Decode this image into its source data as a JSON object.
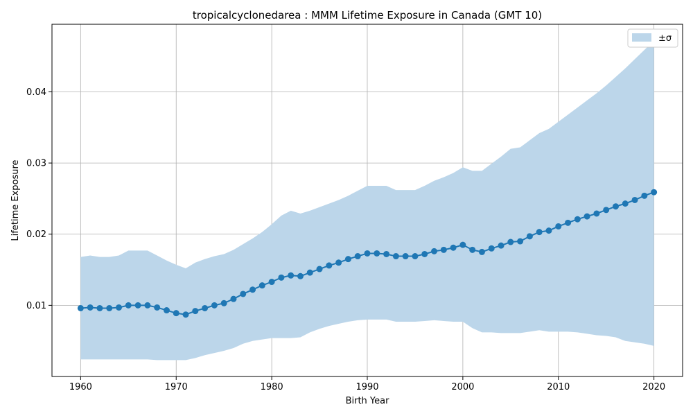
{
  "chart_data": {
    "type": "line",
    "title": "tropicalcyclonedarea : MMM Lifetime Exposure in Canada (GMT 10)",
    "xlabel": "Birth Year",
    "ylabel": "Lifetime Exposure",
    "xlim": [
      1957,
      2023
    ],
    "ylim": [
      0.0,
      0.0495
    ],
    "xticks": [
      1960,
      1970,
      1980,
      1990,
      2000,
      2010,
      2020
    ],
    "xtick_labels": [
      "1960",
      "1970",
      "1980",
      "1990",
      "2000",
      "2010",
      "2020"
    ],
    "yticks": [
      0.01,
      0.02,
      0.03,
      0.04
    ],
    "ytick_labels": [
      "0.01",
      "0.02",
      "0.03",
      "0.04"
    ],
    "grid": true,
    "legend": {
      "position": "top-right",
      "entries": [
        "±σ"
      ]
    },
    "line_color": "#1f77b4",
    "band_color": "#bcd6ea",
    "x": [
      1960,
      1961,
      1962,
      1963,
      1964,
      1965,
      1966,
      1967,
      1968,
      1969,
      1970,
      1971,
      1972,
      1973,
      1974,
      1975,
      1976,
      1977,
      1978,
      1979,
      1980,
      1981,
      1982,
      1983,
      1984,
      1985,
      1986,
      1987,
      1988,
      1989,
      1990,
      1991,
      1992,
      1993,
      1994,
      1995,
      1996,
      1997,
      1998,
      1999,
      2000,
      2001,
      2002,
      2003,
      2004,
      2005,
      2006,
      2007,
      2008,
      2009,
      2010,
      2011,
      2012,
      2013,
      2014,
      2015,
      2016,
      2017,
      2018,
      2019,
      2020
    ],
    "series": [
      {
        "name": "mean",
        "values": [
          0.0096,
          0.0097,
          0.0096,
          0.0096,
          0.0097,
          0.01,
          0.01,
          0.01,
          0.0097,
          0.0093,
          0.0089,
          0.0087,
          0.0092,
          0.0096,
          0.01,
          0.0103,
          0.0109,
          0.0116,
          0.0122,
          0.0128,
          0.0133,
          0.0139,
          0.0142,
          0.0141,
          0.0146,
          0.0151,
          0.0156,
          0.016,
          0.0165,
          0.0169,
          0.0173,
          0.0173,
          0.0172,
          0.0169,
          0.0169,
          0.0169,
          0.0172,
          0.0176,
          0.0178,
          0.0181,
          0.0185,
          0.0178,
          0.0175,
          0.018,
          0.0184,
          0.0189,
          0.019,
          0.0197,
          0.0203,
          0.0205,
          0.0211,
          0.0216,
          0.0221,
          0.0225,
          0.0229,
          0.0234,
          0.0239,
          0.0243,
          0.0248,
          0.0254,
          0.0259
        ]
      }
    ],
    "band": {
      "name": "±σ",
      "upper": [
        0.0168,
        0.017,
        0.0168,
        0.0168,
        0.017,
        0.0177,
        0.0177,
        0.0177,
        0.017,
        0.0163,
        0.0157,
        0.0152,
        0.016,
        0.0165,
        0.0169,
        0.0172,
        0.0178,
        0.0186,
        0.0194,
        0.0203,
        0.0214,
        0.0226,
        0.0233,
        0.0229,
        0.0233,
        0.0238,
        0.0243,
        0.0248,
        0.0254,
        0.0261,
        0.0268,
        0.0268,
        0.0268,
        0.0262,
        0.0262,
        0.0262,
        0.0268,
        0.0275,
        0.028,
        0.0286,
        0.0294,
        0.0289,
        0.0289,
        0.0299,
        0.0309,
        0.032,
        0.0322,
        0.0332,
        0.0342,
        0.0348,
        0.0358,
        0.0368,
        0.0378,
        0.0388,
        0.0398,
        0.0409,
        0.0421,
        0.0433,
        0.0446,
        0.0459,
        0.0472
      ],
      "lower": [
        0.0024,
        0.0024,
        0.0024,
        0.0024,
        0.0024,
        0.0024,
        0.0024,
        0.0024,
        0.0023,
        0.0023,
        0.0023,
        0.0023,
        0.0026,
        0.003,
        0.0033,
        0.0036,
        0.004,
        0.0046,
        0.005,
        0.0052,
        0.0054,
        0.0054,
        0.0054,
        0.0055,
        0.0062,
        0.0067,
        0.0071,
        0.0074,
        0.0077,
        0.0079,
        0.008,
        0.008,
        0.008,
        0.0077,
        0.0077,
        0.0077,
        0.0078,
        0.0079,
        0.0078,
        0.0077,
        0.0077,
        0.0068,
        0.0062,
        0.0062,
        0.0061,
        0.0061,
        0.0061,
        0.0063,
        0.0065,
        0.0063,
        0.0063,
        0.0063,
        0.0062,
        0.006,
        0.0058,
        0.0057,
        0.0055,
        0.005,
        0.0048,
        0.0046,
        0.0043
      ]
    }
  }
}
